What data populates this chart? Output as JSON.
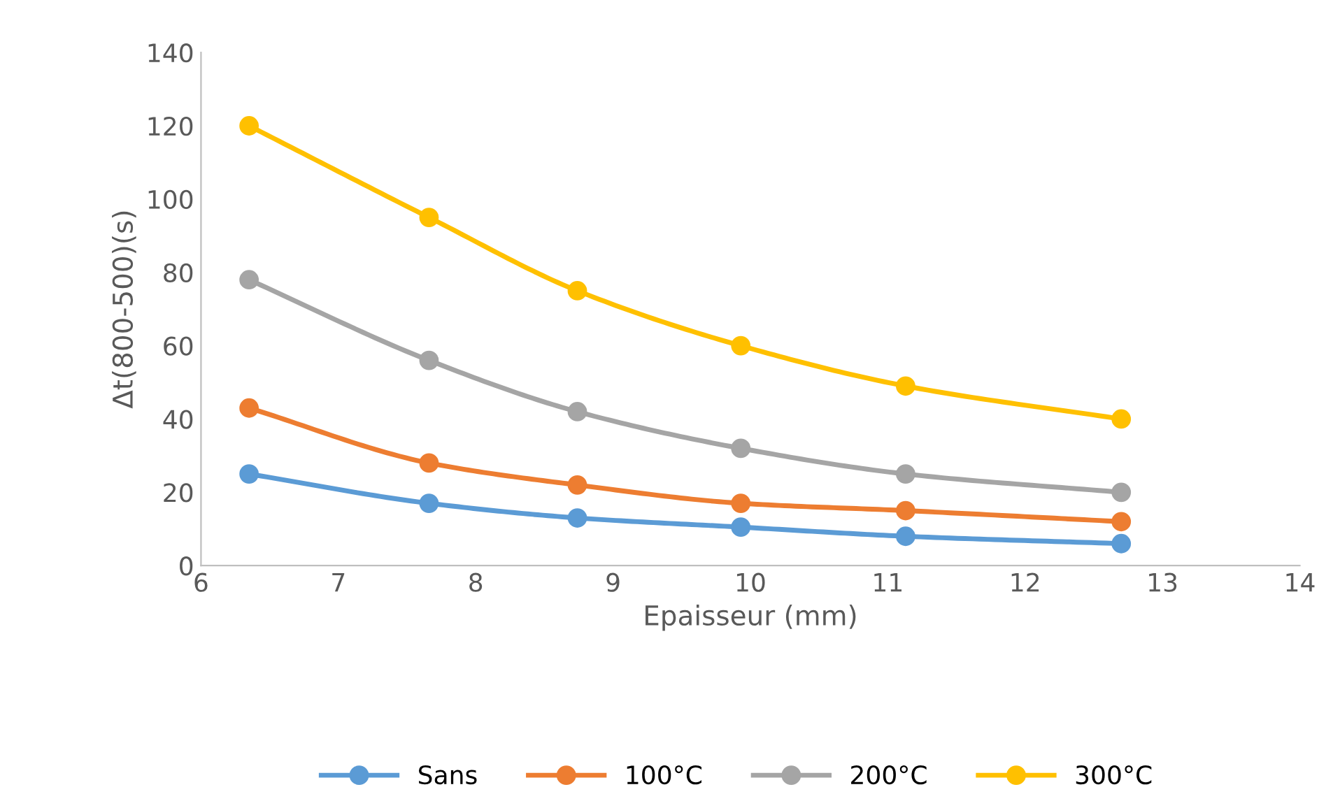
{
  "chart_data": {
    "type": "line",
    "xlabel": "Epaisseur (mm)",
    "ylabel": "Δt(800-500)(s)",
    "x": [
      6.35,
      7.66,
      8.74,
      9.93,
      11.13,
      12.7
    ],
    "series": [
      {
        "name": "Sans",
        "color": "#5b9bd5",
        "values": [
          25,
          17,
          13,
          10.5,
          8,
          6
        ]
      },
      {
        "name": "100°C",
        "color": "#ed7d31",
        "values": [
          43,
          28,
          22,
          17,
          15,
          12
        ]
      },
      {
        "name": "200°C",
        "color": "#a5a5a5",
        "values": [
          78,
          56,
          42,
          32,
          25,
          20
        ]
      },
      {
        "name": "300°C",
        "color": "#ffc000",
        "values": [
          120,
          95,
          75,
          60,
          49,
          40
        ]
      }
    ],
    "xlim": [
      6,
      14
    ],
    "xticks": [
      6,
      7,
      8,
      9,
      10,
      11,
      12,
      13,
      14
    ],
    "ylim": [
      0,
      140
    ],
    "yticks": [
      0,
      20,
      40,
      60,
      80,
      100,
      120,
      140
    ],
    "grid": false,
    "legend": "bottom",
    "marker": "circle",
    "line_style": "solid"
  }
}
